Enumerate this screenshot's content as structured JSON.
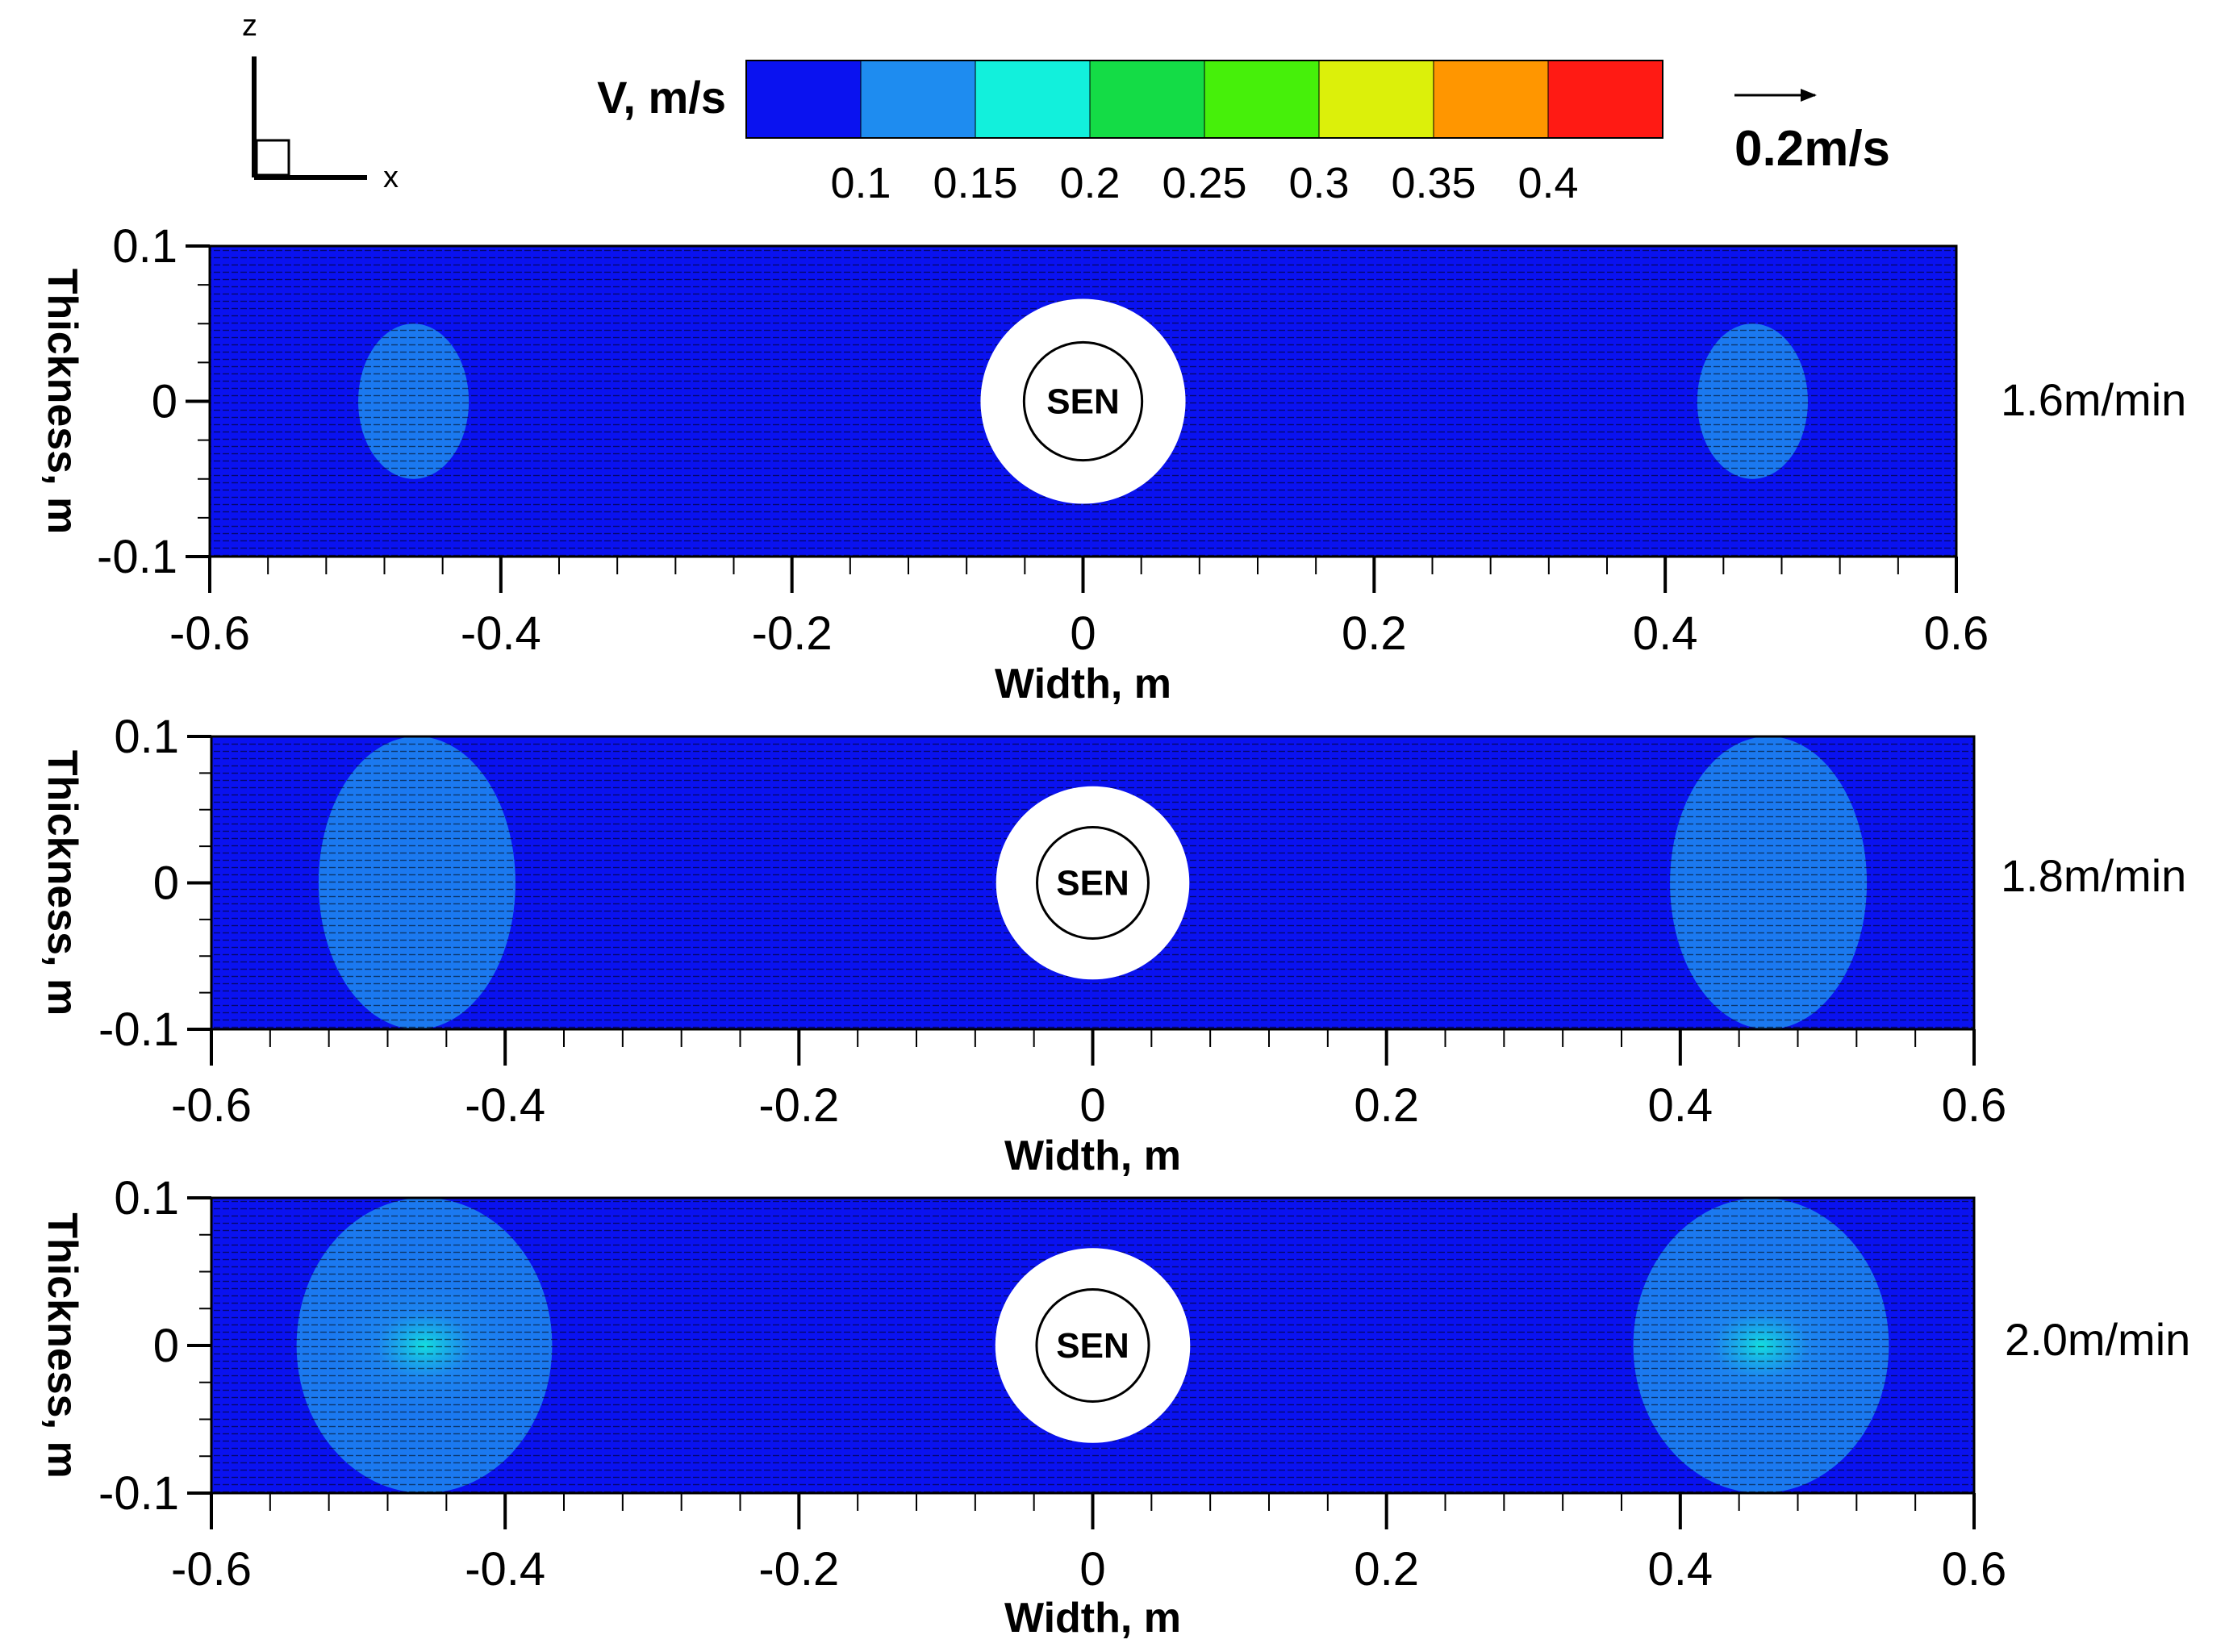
{
  "axes_indicator": {
    "z_label": "z",
    "x_label": "x"
  },
  "colorbar": {
    "title": "V, m/s",
    "colors": [
      "#0a12f0",
      "#1e8cf0",
      "#12f0dc",
      "#14dc46",
      "#46f00a",
      "#dcf00a",
      "#ff9600",
      "#ff1a14"
    ],
    "tick_labels": [
      "0.1",
      "0.15",
      "0.2",
      "0.25",
      "0.3",
      "0.35",
      "0.4"
    ]
  },
  "reference_vector": {
    "label": "0.2m/s"
  },
  "chart_data": [
    {
      "type": "heatmap",
      "title": "1.6m/min",
      "xlabel": "Width, m",
      "ylabel": "Thickness, m",
      "xlim": [
        -0.6,
        0.6
      ],
      "ylim": [
        -0.1,
        0.1
      ],
      "x_ticks": [
        "-0.6",
        "-0.4",
        "-0.2",
        "0",
        "0.2",
        "0.4",
        "0.6"
      ],
      "y_ticks": [
        "0.1",
        "0",
        "-0.1"
      ],
      "background_speed_range": "< 0.1 m/s",
      "nozzle_label": "SEN",
      "high_speed_regions": [
        {
          "center_x": -0.46,
          "center_z": 0.0,
          "half_width": 0.038,
          "half_thickness": 0.05,
          "approx_speed": 0.12
        },
        {
          "center_x": 0.46,
          "center_z": 0.0,
          "half_width": 0.038,
          "half_thickness": 0.05,
          "approx_speed": 0.12
        }
      ]
    },
    {
      "type": "heatmap",
      "title": "1.8m/min",
      "xlabel": "Width, m",
      "ylabel": "Thickness, m",
      "xlim": [
        -0.6,
        0.6
      ],
      "ylim": [
        -0.1,
        0.1
      ],
      "x_ticks": [
        "-0.6",
        "-0.4",
        "-0.2",
        "0",
        "0.2",
        "0.4",
        "0.6"
      ],
      "y_ticks": [
        "0.1",
        "0",
        "-0.1"
      ],
      "background_speed_range": "< 0.1 m/s",
      "nozzle_label": "SEN",
      "high_speed_regions": [
        {
          "center_x": -0.46,
          "center_z": 0.0,
          "half_width": 0.067,
          "half_thickness": 0.1,
          "approx_speed": 0.13
        },
        {
          "center_x": 0.46,
          "center_z": 0.0,
          "half_width": 0.067,
          "half_thickness": 0.1,
          "approx_speed": 0.13
        }
      ]
    },
    {
      "type": "heatmap",
      "title": "2.0m/min",
      "xlabel": "Width, m",
      "ylabel": "Thickness, m",
      "xlim": [
        -0.6,
        0.6
      ],
      "ylim": [
        -0.1,
        0.1
      ],
      "x_ticks": [
        "-0.6",
        "-0.4",
        "-0.2",
        "0",
        "0.2",
        "0.4",
        "0.6"
      ],
      "y_ticks": [
        "0.1",
        "0",
        "-0.1"
      ],
      "background_speed_range": "< 0.1 m/s",
      "nozzle_label": "SEN",
      "high_speed_regions": [
        {
          "center_x": -0.455,
          "center_z": 0.0,
          "half_width": 0.087,
          "half_thickness": 0.1,
          "approx_speed": 0.17
        },
        {
          "center_x": 0.455,
          "center_z": 0.0,
          "half_width": 0.087,
          "half_thickness": 0.1,
          "approx_speed": 0.17
        }
      ]
    }
  ]
}
